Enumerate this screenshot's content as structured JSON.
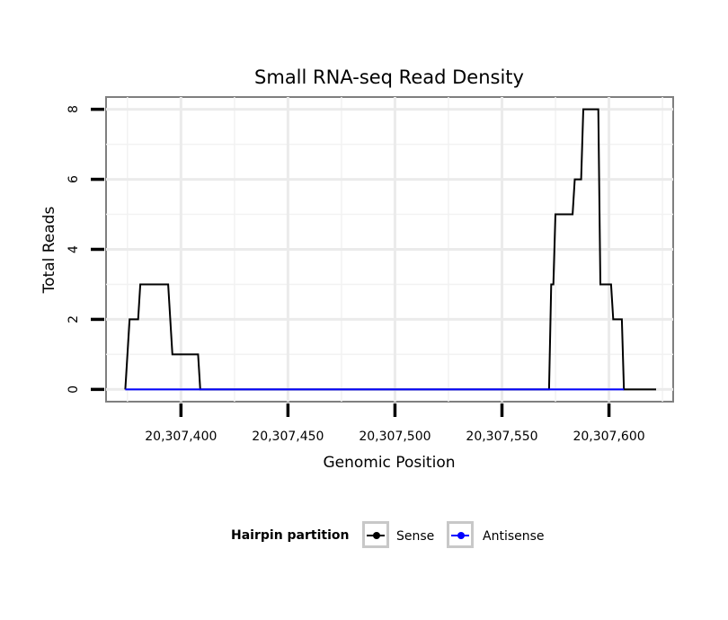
{
  "chart_data": {
    "type": "line",
    "title": "Small RNA-seq Read Density",
    "xlabel": "Genomic Position",
    "ylabel": "Total Reads",
    "xlim": [
      20307365,
      20307630
    ],
    "ylim": [
      -0.35,
      8.35
    ],
    "x_ticks": [
      20307400,
      20307450,
      20307500,
      20307550,
      20307600
    ],
    "x_tick_labels": [
      "20,307,400",
      "20,307,450",
      "20,307,500",
      "20,307,550",
      "20,307,600"
    ],
    "y_ticks": [
      0,
      2,
      4,
      6,
      8
    ],
    "y_tick_labels": [
      "0",
      "2",
      "4",
      "6",
      "8"
    ],
    "grid": true,
    "legend_position": "bottom",
    "legend_title": "Hairpin partition",
    "series": [
      {
        "name": "Sense",
        "color": "#000000",
        "points": [
          [
            20307374,
            0
          ],
          [
            20307376,
            2
          ],
          [
            20307380,
            2
          ],
          [
            20307381,
            3
          ],
          [
            20307394,
            3
          ],
          [
            20307396,
            1
          ],
          [
            20307408,
            1
          ],
          [
            20307409,
            0
          ],
          [
            20307572,
            0
          ],
          [
            20307573,
            3
          ],
          [
            20307574,
            3
          ],
          [
            20307575,
            5
          ],
          [
            20307583,
            5
          ],
          [
            20307584,
            6
          ],
          [
            20307587,
            6
          ],
          [
            20307588,
            8
          ],
          [
            20307595,
            8
          ],
          [
            20307596,
            3
          ],
          [
            20307601,
            3
          ],
          [
            20307602,
            2
          ],
          [
            20307606,
            2
          ],
          [
            20307607,
            0
          ],
          [
            20307622,
            0
          ]
        ]
      },
      {
        "name": "Antisense",
        "color": "#0000ff",
        "points": [
          [
            20307374,
            0
          ],
          [
            20307409,
            0
          ],
          [
            20307572,
            0
          ],
          [
            20307607,
            0
          ]
        ]
      }
    ]
  }
}
